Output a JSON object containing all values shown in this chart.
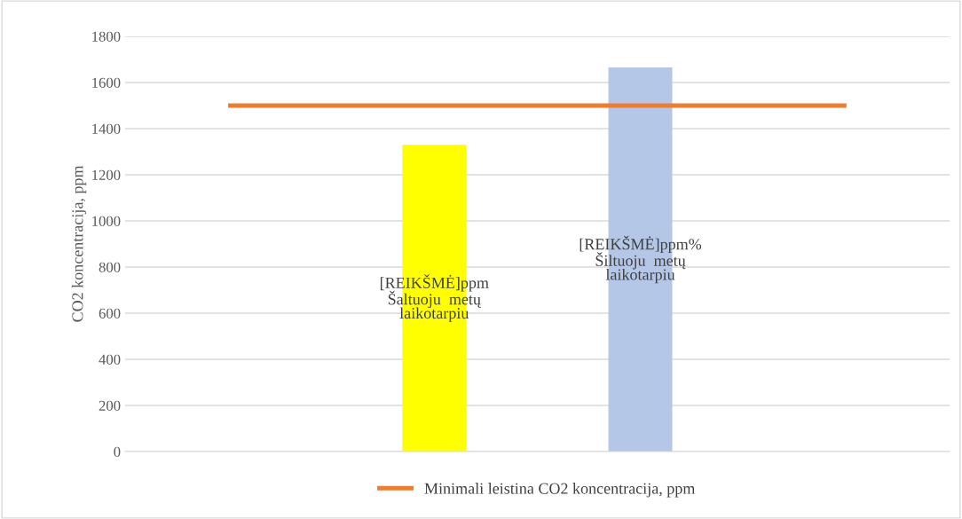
{
  "chart_data": {
    "type": "bar",
    "ylabel": "CO2 koncentracija, ppm",
    "categories": [
      null,
      null,
      null,
      null
    ],
    "series": [
      {
        "colors": [
          null,
          "#ffff00",
          "#b4c7e7",
          null
        ],
        "values": [
          null,
          1330,
          1665,
          null
        ],
        "value_labels": [
          null,
          "[REIKŠMĖ]ppm\nŠaltuoju  metų\nlaikotarpiu",
          "[REIKŠMĖ]ppm%\nŠiltuoju  metų\nlaikotarpiu",
          null
        ]
      },
      {
        "type": "line",
        "name": "Minimali leistina CO2 koncentracija, ppm",
        "color": "#ed7d31",
        "values": [
          1500,
          1500,
          1500,
          1500
        ]
      }
    ],
    "ylim": [
      0,
      1800
    ],
    "yticks": [
      0,
      200,
      400,
      600,
      800,
      1000,
      1200,
      1400,
      1600,
      1800
    ],
    "grid": "y",
    "legend": "bottom",
    "marker": "none",
    "line_style": "solid"
  }
}
